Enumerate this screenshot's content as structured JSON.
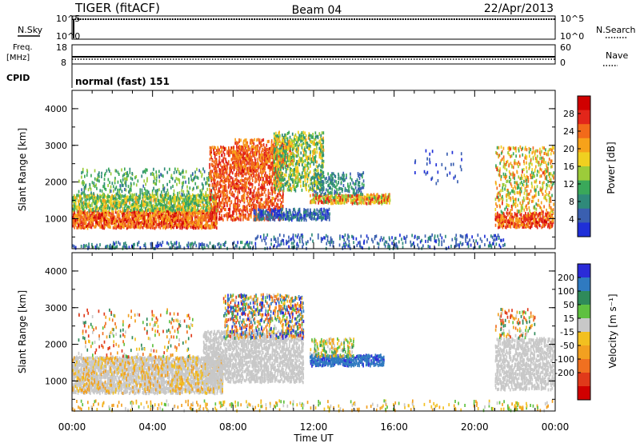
{
  "header": {
    "station": "TIGER (fitACF)",
    "beam": "Beam 04",
    "date": "22/Apr/2013"
  },
  "panels": {
    "nsky": {
      "label": "N.Sky",
      "top": "10^5",
      "bottom": "10^0"
    },
    "nsearch": {
      "label": "N.Search",
      "top": "10^5",
      "bottom": "10^0"
    },
    "freq": {
      "label_line1": "Freq.",
      "label_line2": "[MHz]",
      "top": "18",
      "bottom": "8"
    },
    "nave": {
      "label": "Nave",
      "top": "60",
      "bottom": "0"
    },
    "cpid": {
      "label": "CPID",
      "mode": "normal (fast) 151"
    }
  },
  "colors": {
    "power": [
      "#1f2fd8",
      "#3a5fb0",
      "#2f8a7a",
      "#3aa85a",
      "#9ccc3a",
      "#f0d020",
      "#f7a21a",
      "#f26a1a",
      "#e2261a",
      "#d00000"
    ],
    "velocity": [
      "#2b2bd8",
      "#2f7ac0",
      "#2f8a5a",
      "#5fc040",
      "#c8c8c8",
      "#f2c020",
      "#f2a020",
      "#f07020",
      "#e03a1a",
      "#d00000"
    ],
    "velocity_ground": "#c8c8c8"
  },
  "chart_data": [
    {
      "type": "heatmap",
      "name": "power",
      "ylabel": "Slant Range [km]",
      "yticks": [
        "1000",
        "2000",
        "3000",
        "4000"
      ],
      "colorbar_label": "Power [dB]",
      "colorbar_ticks": [
        "4",
        "8",
        "12",
        "16",
        "20",
        "24",
        "28"
      ],
      "ylim": [
        180,
        4500
      ],
      "regions": [
        {
          "t0": 0.0,
          "t1": 7.2,
          "r0": 780,
          "r1": 1250,
          "v0": 20,
          "v1": 30,
          "density": 0.85
        },
        {
          "t0": 0.0,
          "t1": 7.2,
          "r0": 1250,
          "r1": 1700,
          "v0": 8,
          "v1": 20,
          "density": 0.7
        },
        {
          "t0": 0.3,
          "t1": 7.0,
          "r0": 1700,
          "r1": 2400,
          "v0": 6,
          "v1": 16,
          "density": 0.18
        },
        {
          "t0": 6.8,
          "t1": 10.5,
          "r0": 1000,
          "r1": 3000,
          "v0": 22,
          "v1": 30,
          "density": 0.45
        },
        {
          "t0": 8.0,
          "t1": 11.0,
          "r0": 2400,
          "r1": 3200,
          "v0": 20,
          "v1": 28,
          "density": 0.4
        },
        {
          "t0": 10.0,
          "t1": 12.5,
          "r0": 1800,
          "r1": 3400,
          "v0": 8,
          "v1": 20,
          "density": 0.45
        },
        {
          "t0": 11.8,
          "t1": 15.8,
          "r0": 1450,
          "r1": 1700,
          "v0": 12,
          "v1": 28,
          "density": 0.75
        },
        {
          "t0": 9.0,
          "t1": 12.8,
          "r0": 1000,
          "r1": 1300,
          "v0": 2,
          "v1": 8,
          "density": 0.55
        },
        {
          "t0": 12.0,
          "t1": 14.5,
          "r0": 1700,
          "r1": 2300,
          "v0": 4,
          "v1": 12,
          "density": 0.3
        },
        {
          "t0": 21.0,
          "t1": 24.0,
          "r0": 800,
          "r1": 1200,
          "v0": 20,
          "v1": 30,
          "density": 0.75
        },
        {
          "t0": 21.0,
          "t1": 24.0,
          "r0": 1200,
          "r1": 3000,
          "v0": 10,
          "v1": 26,
          "density": 0.25
        },
        {
          "t0": 9.0,
          "t1": 21.5,
          "r0": 200,
          "r1": 600,
          "v0": 2,
          "v1": 8,
          "density": 0.18
        },
        {
          "t0": 0.0,
          "t1": 9.0,
          "r0": 200,
          "r1": 400,
          "v0": 2,
          "v1": 10,
          "density": 0.3
        },
        {
          "t0": 17.0,
          "t1": 19.5,
          "r0": 2000,
          "r1": 2900,
          "v0": 2,
          "v1": 6,
          "density": 0.05
        }
      ]
    },
    {
      "type": "heatmap",
      "name": "velocity",
      "ylabel": "Slant Range [km]",
      "yticks": [
        "1000",
        "2000",
        "3000",
        "4000"
      ],
      "colorbar_label": "Velocity [m s⁻¹]",
      "colorbar_ticks": [
        "200",
        "100",
        "50",
        "15",
        "-15",
        "-50",
        "-100",
        "-200"
      ],
      "ylim": [
        180,
        4500
      ],
      "regions": [
        {
          "t0": 0.0,
          "t1": 7.5,
          "r0": 700,
          "r1": 1700,
          "v0": -15,
          "v1": 15,
          "density": 0.75
        },
        {
          "t0": 0.0,
          "t1": 7.5,
          "r0": 700,
          "r1": 1700,
          "v0": -100,
          "v1": -15,
          "density": 0.15
        },
        {
          "t0": 6.5,
          "t1": 11.5,
          "r0": 1000,
          "r1": 2400,
          "v0": -15,
          "v1": 15,
          "density": 0.6
        },
        {
          "t0": 7.5,
          "t1": 11.5,
          "r0": 2200,
          "r1": 3400,
          "v0": -200,
          "v1": 250,
          "density": 0.35
        },
        {
          "t0": 11.8,
          "t1": 15.5,
          "r0": 1450,
          "r1": 1750,
          "v0": 100,
          "v1": 250,
          "density": 0.75
        },
        {
          "t0": 11.8,
          "t1": 14.0,
          "r0": 1700,
          "r1": 2200,
          "v0": -100,
          "v1": 60,
          "density": 0.35
        },
        {
          "t0": 21.0,
          "t1": 24.0,
          "r0": 800,
          "r1": 2200,
          "v0": -15,
          "v1": 15,
          "density": 0.55
        },
        {
          "t0": 21.0,
          "t1": 23.0,
          "r0": 2200,
          "r1": 3000,
          "v0": -200,
          "v1": 100,
          "density": 0.2
        },
        {
          "t0": 0.0,
          "t1": 24.0,
          "r0": 200,
          "r1": 500,
          "v0": -100,
          "v1": 50,
          "density": 0.12
        },
        {
          "t0": 0.3,
          "t1": 6.0,
          "r0": 1700,
          "r1": 3000,
          "v0": -200,
          "v1": 100,
          "density": 0.08
        }
      ]
    }
  ],
  "x_axis": {
    "label": "Time UT",
    "ticks": [
      "00:00",
      "04:00",
      "08:00",
      "12:00",
      "16:00",
      "20:00",
      "00:00"
    ],
    "xlim": [
      0,
      24
    ]
  }
}
